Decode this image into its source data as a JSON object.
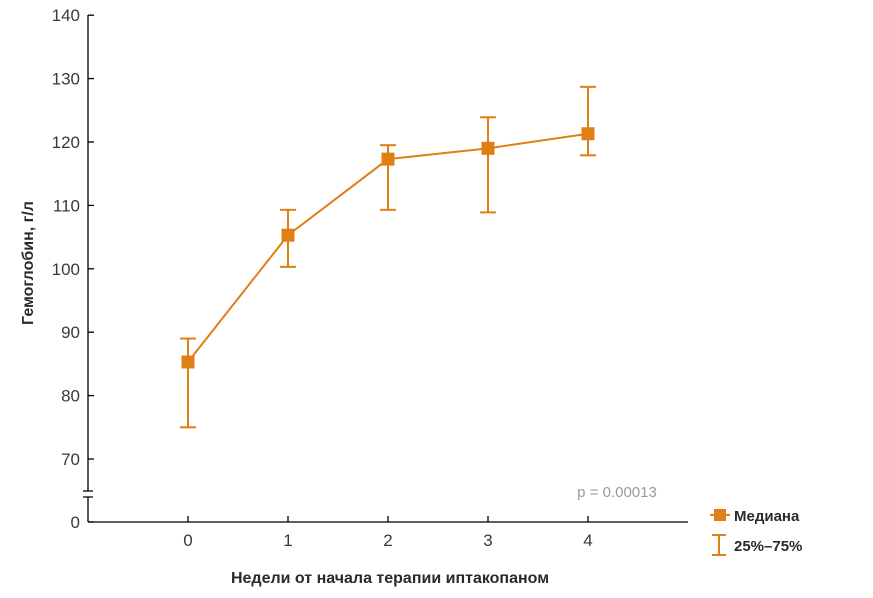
{
  "chart_data": {
    "type": "line",
    "title": "",
    "xlabel": "Недели от начала терапии иптакопаном",
    "ylabel": "Гемоглобин, г/л",
    "x": [
      0,
      1,
      2,
      3,
      4
    ],
    "x_tick_labels": [
      "0",
      "1",
      "2",
      "3",
      "4"
    ],
    "y_tick_labels": [
      "0",
      "70",
      "80",
      "90",
      "100",
      "110",
      "120",
      "130",
      "140"
    ],
    "ylim": [
      0,
      140
    ],
    "y_axis_break": "between 0 and 70",
    "grid": false,
    "series": [
      {
        "name": "Медиана",
        "values": [
          85.3,
          105.3,
          117.3,
          119.0,
          121.3
        ],
        "q25": [
          75.0,
          100.3,
          109.3,
          108.9,
          117.9
        ],
        "q75": [
          89.0,
          109.3,
          119.5,
          123.9,
          128.7
        ]
      }
    ],
    "annotation": "p = 0.00013",
    "legend": {
      "placement": "bottom-right",
      "median_label": "Медиана",
      "iqr_label": "25%–75%"
    },
    "colors": {
      "series": "#e07f14",
      "axis": "#000000",
      "text": "#3a3a3a",
      "annotation": "#9a9a9a"
    }
  }
}
